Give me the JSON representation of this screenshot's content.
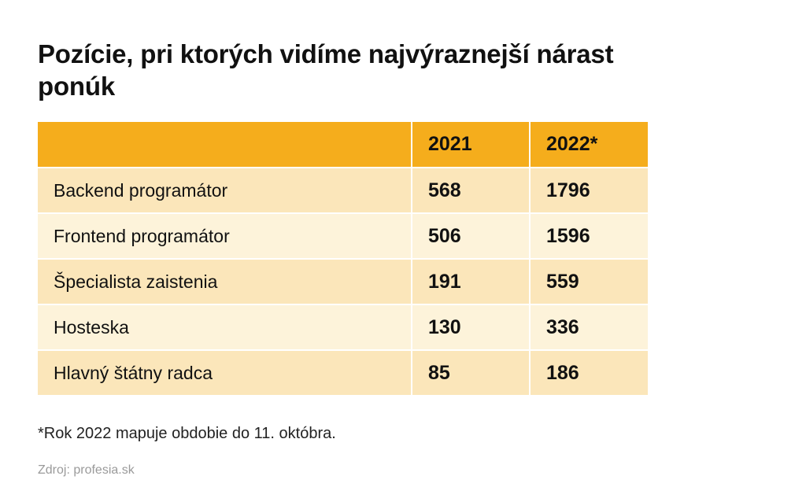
{
  "title": "Pozície, pri ktorých vidíme najvýraznejší nárast ponúk",
  "footnote": "*Rok 2022 mapuje obdobie do 11. októbra.",
  "source": "Zdroj: profesia.sk",
  "colors": {
    "header": "#f5ad1c",
    "row_odd": "#fbe6ba",
    "row_even": "#fdf3da"
  },
  "chart_data": {
    "type": "table",
    "title": "Pozície, pri ktorých vidíme najvýraznejší nárast ponúk",
    "columns": [
      "",
      "2021",
      "2022*"
    ],
    "rows": [
      {
        "label": "Backend programátor",
        "y2021": "568",
        "y2022": "1796"
      },
      {
        "label": "Frontend programátor",
        "y2021": "506",
        "y2022": "1596"
      },
      {
        "label": "Špecialista zaistenia",
        "y2021": "191",
        "y2022": "559"
      },
      {
        "label": "Hosteska",
        "y2021": "130",
        "y2022": "336"
      },
      {
        "label": "Hlavný štátny radca",
        "y2021": "85",
        "y2022": "186"
      }
    ]
  }
}
